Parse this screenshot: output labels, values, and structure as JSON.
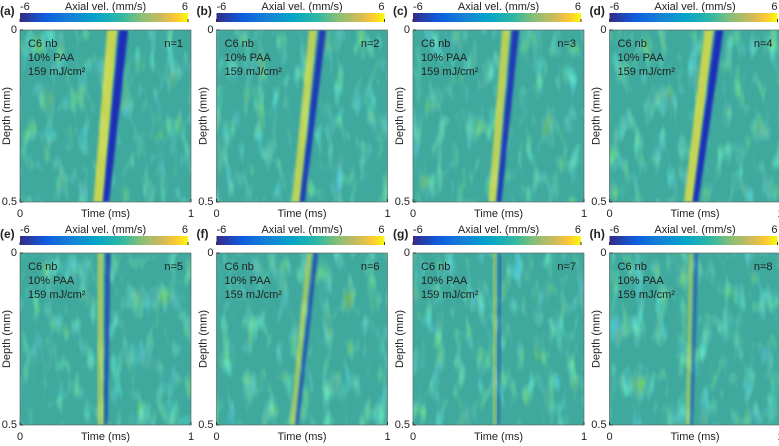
{
  "chart_data": [
    {
      "type": "heatmap",
      "panel_label": "(a)",
      "colorbar_label": "Axial vel. (mm/s)",
      "clim": [
        -6,
        6
      ],
      "cticks": [
        -6,
        6
      ],
      "annotation": [
        "C6 nb",
        "10% PAA",
        "159 mJ/cm²"
      ],
      "n_label": "n=1",
      "x_label": "Time (ms)",
      "y_label": "Depth (mm)",
      "xlim": [
        0,
        1
      ],
      "xticks": [
        0,
        1
      ],
      "ylim": [
        0,
        0.5
      ],
      "yticks": [
        0,
        0.5
      ]
    },
    {
      "type": "heatmap",
      "panel_label": "(b)",
      "colorbar_label": "Axial vel. (mm/s)",
      "clim": [
        -6,
        6
      ],
      "cticks": [
        -6,
        6
      ],
      "annotation": [
        "C6 nb",
        "10% PAA",
        "159 mJ/cm²"
      ],
      "n_label": "n=2",
      "x_label": "Time (ms)",
      "y_label": "Depth (mm)",
      "xlim": [
        0,
        1
      ],
      "xticks": [
        0,
        1
      ],
      "ylim": [
        0,
        0.5
      ],
      "yticks": [
        0,
        0.5
      ]
    },
    {
      "type": "heatmap",
      "panel_label": "(c)",
      "colorbar_label": "Axial vel. (mm/s)",
      "clim": [
        -6,
        6
      ],
      "cticks": [
        -6,
        6
      ],
      "annotation": [
        "C6 nb",
        "10% PAA",
        "159 mJ/cm²"
      ],
      "n_label": "n=3",
      "x_label": "Time (ms)",
      "y_label": "Depth (mm)",
      "xlim": [
        0,
        1
      ],
      "xticks": [
        0,
        1
      ],
      "ylim": [
        0,
        0.5
      ],
      "yticks": [
        0,
        0.5
      ]
    },
    {
      "type": "heatmap",
      "panel_label": "(d)",
      "colorbar_label": "Axial vel. (mm/s)",
      "clim": [
        -6,
        6
      ],
      "cticks": [
        -6,
        6
      ],
      "annotation": [
        "C6 nb",
        "10% PAA",
        "159 mJ/cm²"
      ],
      "n_label": "n=4",
      "x_label": "Time (ms)",
      "y_label": "Depth (mm)",
      "xlim": [
        0,
        1
      ],
      "xticks": [
        0,
        1
      ],
      "ylim": [
        0,
        0.5
      ],
      "yticks": [
        0,
        0.5
      ]
    },
    {
      "type": "heatmap",
      "panel_label": "(e)",
      "colorbar_label": "Axial vel. (mm/s)",
      "clim": [
        -6,
        6
      ],
      "cticks": [
        -6,
        6
      ],
      "annotation": [
        "C6 nb",
        "10% PAA",
        "159 mJ/cm²"
      ],
      "n_label": "n=5",
      "x_label": "Time (ms)",
      "y_label": "Depth (mm)",
      "xlim": [
        0,
        1
      ],
      "xticks": [
        0,
        1
      ],
      "ylim": [
        0,
        0.5
      ],
      "yticks": [
        0,
        0.5
      ]
    },
    {
      "type": "heatmap",
      "panel_label": "(f)",
      "colorbar_label": "Axial vel. (mm/s)",
      "clim": [
        -6,
        6
      ],
      "cticks": [
        -6,
        6
      ],
      "annotation": [
        "C6 nb",
        "10% PAA",
        "159 mJ/cm²"
      ],
      "n_label": "n=6",
      "x_label": "Time (ms)",
      "y_label": "Depth (mm)",
      "xlim": [
        0,
        1
      ],
      "xticks": [
        0,
        1
      ],
      "ylim": [
        0,
        0.5
      ],
      "yticks": [
        0,
        0.5
      ]
    },
    {
      "type": "heatmap",
      "panel_label": "(g)",
      "colorbar_label": "Axial vel. (mm/s)",
      "clim": [
        -6,
        6
      ],
      "cticks": [
        -6,
        6
      ],
      "annotation": [
        "C6 nb",
        "10% PAA",
        "159 mJ/cm²"
      ],
      "n_label": "n=7",
      "x_label": "Time (ms)",
      "y_label": "Depth (mm)",
      "xlim": [
        0,
        1
      ],
      "xticks": [
        0,
        1
      ],
      "ylim": [
        0,
        0.5
      ],
      "yticks": [
        0,
        0.5
      ]
    },
    {
      "type": "heatmap",
      "panel_label": "(h)",
      "colorbar_label": "Axial vel. (mm/s)",
      "clim": [
        -6,
        6
      ],
      "cticks": [
        -6,
        6
      ],
      "annotation": [
        "C6 nb",
        "10% PAA",
        "159 mJ/cm²"
      ],
      "n_label": "n=8",
      "x_label": "Time (ms)",
      "y_label": "Depth (mm)",
      "xlim": [
        0,
        1
      ],
      "xticks": [
        0,
        1
      ],
      "ylim": [
        0,
        0.5
      ],
      "yticks": [
        0,
        0.5
      ]
    }
  ]
}
